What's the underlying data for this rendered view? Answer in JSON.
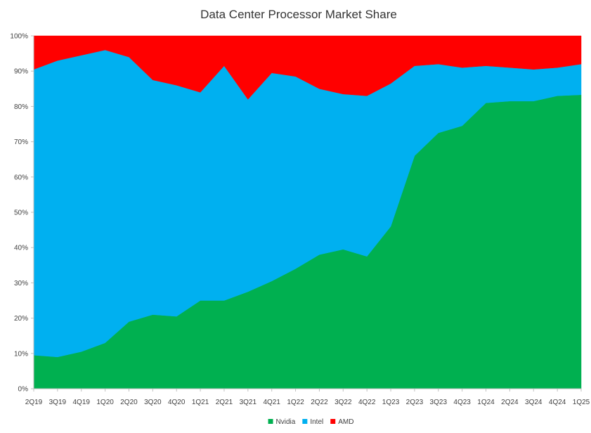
{
  "chart_data": {
    "type": "area",
    "stacked": true,
    "percent": true,
    "title": "Data Center Processor Market Share",
    "xlabel": "",
    "ylabel": "",
    "ylim": [
      0,
      100
    ],
    "y_ticks": [
      0,
      10,
      20,
      30,
      40,
      50,
      60,
      70,
      80,
      90,
      100
    ],
    "y_tick_labels": [
      "0%",
      "10%",
      "20%",
      "30%",
      "40%",
      "50%",
      "60%",
      "70%",
      "80%",
      "90%",
      "100%"
    ],
    "grid": false,
    "legend_position": "bottom",
    "categories": [
      "2Q19",
      "3Q19",
      "4Q19",
      "1Q20",
      "2Q20",
      "3Q20",
      "4Q20",
      "1Q21",
      "2Q21",
      "3Q21",
      "4Q21",
      "1Q22",
      "2Q22",
      "3Q22",
      "4Q22",
      "1Q23",
      "2Q23",
      "3Q23",
      "4Q23",
      "1Q24",
      "2Q24",
      "3Q24",
      "4Q24",
      "1Q25"
    ],
    "series": [
      {
        "name": "Nvidia",
        "color": "#00b050",
        "values": [
          9.5,
          9,
          10.5,
          13,
          19,
          21,
          20.5,
          25,
          25,
          27.5,
          30.5,
          34,
          38,
          39.5,
          37.5,
          46,
          66,
          72.5,
          74.5,
          81,
          81.5,
          81.5,
          83,
          83.3
        ]
      },
      {
        "name": "Intel",
        "color": "#00b0f0",
        "values": [
          81,
          84,
          84,
          83,
          75,
          66.5,
          65.5,
          59,
          66.5,
          54.5,
          59,
          54.5,
          47,
          44,
          45.5,
          40.5,
          25.5,
          19.5,
          16.5,
          10.5,
          9.5,
          9,
          8,
          8.7
        ]
      },
      {
        "name": "AMD",
        "color": "#ff0000",
        "values": [
          9.5,
          7,
          5.5,
          4,
          6,
          12.5,
          14,
          16,
          8.5,
          18,
          10.5,
          11.5,
          15,
          16.5,
          17,
          13.5,
          8.5,
          8,
          9,
          8.5,
          9,
          9.5,
          9,
          8
        ]
      }
    ]
  }
}
